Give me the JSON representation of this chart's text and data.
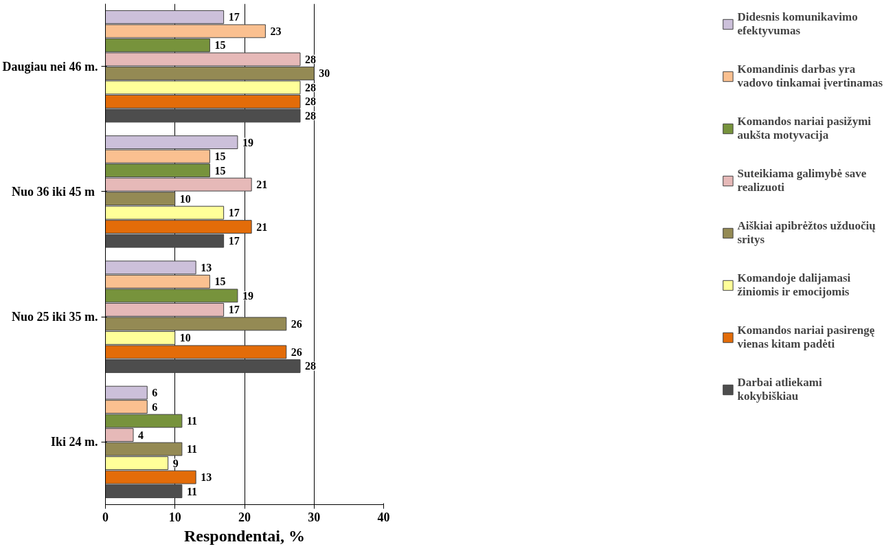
{
  "chart_data": {
    "type": "bar",
    "orientation": "horizontal",
    "xlabel": "Respondentai, %",
    "categories": [
      "Daugiau nei 46 m.",
      "Nuo  36 iki 45 m",
      "Nuo 25 iki 35 m.",
      "Iki 24 m."
    ],
    "series": [
      {
        "name": "Didesnis komunikavimo efektyvumas",
        "color": "#ccc0da",
        "values": [
          17,
          19,
          13,
          6
        ]
      },
      {
        "name": "Komandinis darbas yra vadovo tinkamai įvertinamas",
        "color": "#fac090",
        "values": [
          23,
          15,
          15,
          6
        ]
      },
      {
        "name": "Komandos nariai pasižymi aukšta motyvacija",
        "color": "#77933c",
        "values": [
          15,
          15,
          19,
          11
        ]
      },
      {
        "name": "Suteikiama galimybė save realizuoti",
        "color": "#e6b9b8",
        "values": [
          28,
          21,
          17,
          4
        ]
      },
      {
        "name": "Aiškiai apibrėžtos užduočių sritys",
        "color": "#948a54",
        "values": [
          30,
          10,
          26,
          11
        ]
      },
      {
        "name": "Komandoje dalijamasi žiniomis ir emocijomis",
        "color": "#ffff99",
        "values": [
          28,
          17,
          10,
          9
        ]
      },
      {
        "name": "Komandos nariai pasirengę vienas kitam padėti",
        "color": "#e36c09",
        "values": [
          28,
          21,
          26,
          13
        ]
      },
      {
        "name": "Darbai atliekami kokybiškiau",
        "color": "#4d4d4d",
        "values": [
          28,
          17,
          28,
          11
        ]
      }
    ],
    "xlim": [
      0,
      40
    ],
    "xticks": [
      0,
      10,
      20,
      30,
      40
    ],
    "grid": "x",
    "legend": "right",
    "data_labels": true
  }
}
